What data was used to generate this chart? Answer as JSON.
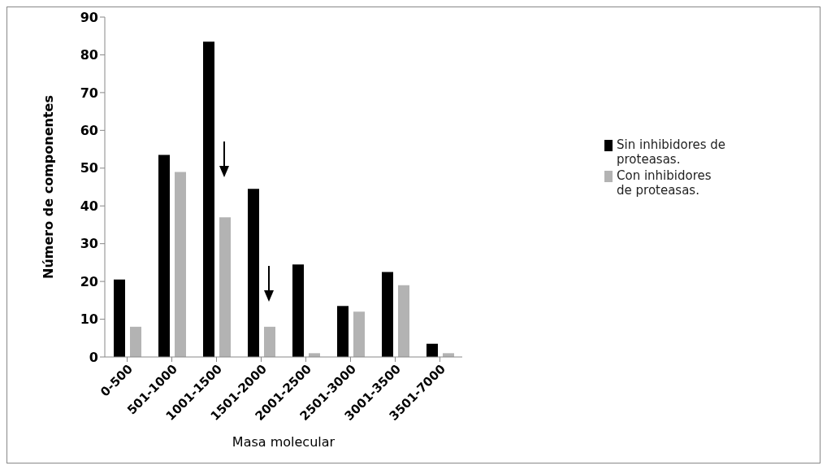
{
  "chart_data": {
    "type": "bar",
    "xlabel": "Masa molecular",
    "ylabel": "Número de componentes",
    "categories": [
      "0-500",
      "501-1000",
      "1001-1500",
      "1501-2000",
      "2001-2500",
      "2501-3000",
      "3001-3500",
      "3501-7000"
    ],
    "series": [
      {
        "name": "Sin inhibidores de proteasas.",
        "color": "#000000",
        "values": [
          20.5,
          53.5,
          83.5,
          44.5,
          24.5,
          13.5,
          22.5,
          3.5
        ]
      },
      {
        "name": "Con inhibidores de proteasas.",
        "color": "#b3b3b3",
        "values": [
          8,
          49,
          37,
          8,
          1,
          12,
          19,
          1
        ]
      }
    ],
    "ylim": [
      0,
      90
    ],
    "yticks": [
      0,
      10,
      20,
      30,
      40,
      50,
      60,
      70,
      80,
      90
    ],
    "grid": false,
    "legend": "right"
  }
}
